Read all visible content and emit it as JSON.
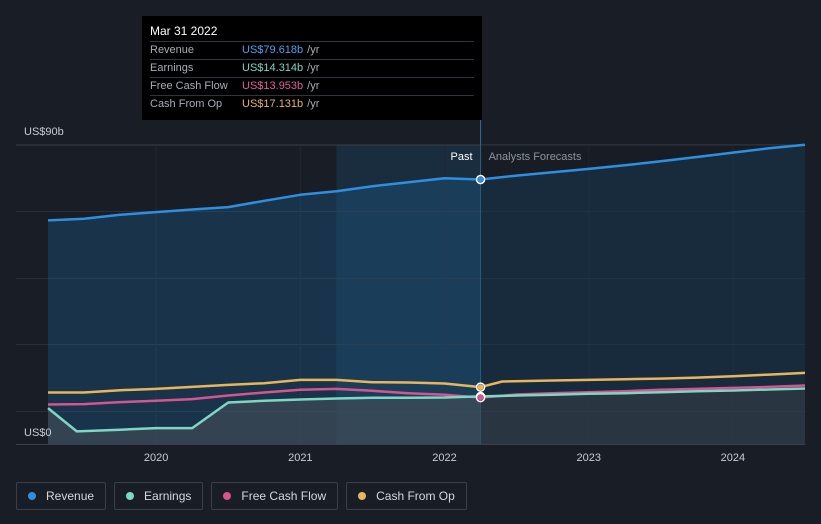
{
  "chart_data": {
    "type": "line",
    "x_range": [
      2019.25,
      2024.5
    ],
    "ylim": [
      0,
      90
    ],
    "y_tick_labels": [
      {
        "value": 90,
        "label": "US$90b"
      },
      {
        "value": 0,
        "label": "US$0"
      }
    ],
    "x_ticks": [
      {
        "value": 2020,
        "label": "2020"
      },
      {
        "value": 2021,
        "label": "2021"
      },
      {
        "value": 2022,
        "label": "2022"
      },
      {
        "value": 2023,
        "label": "2023"
      },
      {
        "value": 2024,
        "label": "2024"
      }
    ],
    "divider_x": 2022.25,
    "highlight_start_x": 2021.25,
    "past_label": "Past",
    "forecast_label": "Analysts Forecasts",
    "series": [
      {
        "name": "Revenue",
        "color": "#2e8fe0",
        "area": true,
        "points": [
          [
            2019.25,
            67.3
          ],
          [
            2019.5,
            67.8
          ],
          [
            2019.75,
            69.0
          ],
          [
            2020,
            69.8
          ],
          [
            2020.25,
            70.6
          ],
          [
            2020.5,
            71.3
          ],
          [
            2020.75,
            73.2
          ],
          [
            2021,
            75.0
          ],
          [
            2021.25,
            76.1
          ],
          [
            2021.5,
            77.6
          ],
          [
            2021.75,
            78.8
          ],
          [
            2022,
            80.0
          ],
          [
            2022.25,
            79.618
          ],
          [
            2022.5,
            80.8
          ],
          [
            2022.75,
            81.8
          ],
          [
            2023,
            82.8
          ],
          [
            2023.25,
            83.9
          ],
          [
            2023.5,
            85.1
          ],
          [
            2023.75,
            86.4
          ],
          [
            2024,
            87.7
          ],
          [
            2024.25,
            89.0
          ],
          [
            2024.5,
            90.1
          ]
        ]
      },
      {
        "name": "Earnings",
        "color": "#7fd6c2",
        "area": true,
        "points": [
          [
            2019.25,
            10.8
          ],
          [
            2019.45,
            3.8
          ],
          [
            2019.75,
            4.3
          ],
          [
            2020,
            4.8
          ],
          [
            2020.25,
            4.8
          ],
          [
            2020.5,
            12.5
          ],
          [
            2020.75,
            13.0
          ],
          [
            2021,
            13.4
          ],
          [
            2021.25,
            13.7
          ],
          [
            2021.5,
            13.9
          ],
          [
            2021.75,
            13.9
          ],
          [
            2022,
            14.0
          ],
          [
            2022.25,
            14.314
          ],
          [
            2022.5,
            14.6
          ],
          [
            2022.75,
            14.8
          ],
          [
            2023,
            15.1
          ],
          [
            2023.25,
            15.3
          ],
          [
            2023.5,
            15.6
          ],
          [
            2023.75,
            15.9
          ],
          [
            2024,
            16.1
          ],
          [
            2024.25,
            16.4
          ],
          [
            2024.5,
            16.7
          ]
        ]
      },
      {
        "name": "Free Cash Flow",
        "color": "#d6558f",
        "area": false,
        "points": [
          [
            2019.25,
            11.9
          ],
          [
            2019.5,
            12.0
          ],
          [
            2019.75,
            12.6
          ],
          [
            2020,
            13.0
          ],
          [
            2020.25,
            13.5
          ],
          [
            2020.5,
            14.6
          ],
          [
            2020.75,
            15.5
          ],
          [
            2021,
            16.3
          ],
          [
            2021.25,
            16.6
          ],
          [
            2021.5,
            16.0
          ],
          [
            2021.75,
            15.3
          ],
          [
            2022,
            14.8
          ],
          [
            2022.25,
            13.953
          ],
          [
            2022.5,
            14.9
          ],
          [
            2022.75,
            15.3
          ],
          [
            2023,
            15.6
          ],
          [
            2023.25,
            15.9
          ],
          [
            2023.5,
            16.3
          ],
          [
            2023.75,
            16.6
          ],
          [
            2024,
            16.9
          ],
          [
            2024.25,
            17.2
          ],
          [
            2024.5,
            17.6
          ]
        ]
      },
      {
        "name": "Cash From Op",
        "color": "#e9b55c",
        "area": false,
        "points": [
          [
            2019.25,
            15.5
          ],
          [
            2019.5,
            15.5
          ],
          [
            2019.75,
            16.2
          ],
          [
            2020,
            16.6
          ],
          [
            2020.25,
            17.2
          ],
          [
            2020.5,
            17.8
          ],
          [
            2020.75,
            18.3
          ],
          [
            2021,
            19.3
          ],
          [
            2021.25,
            19.3
          ],
          [
            2021.5,
            18.6
          ],
          [
            2021.75,
            18.5
          ],
          [
            2022,
            18.2
          ],
          [
            2022.25,
            17.131
          ],
          [
            2022.4,
            18.8
          ],
          [
            2022.75,
            19.1
          ],
          [
            2023,
            19.3
          ],
          [
            2023.25,
            19.5
          ],
          [
            2023.5,
            19.7
          ],
          [
            2023.75,
            20.0
          ],
          [
            2024,
            20.4
          ],
          [
            2024.25,
            20.9
          ],
          [
            2024.5,
            21.4
          ]
        ]
      }
    ]
  },
  "tooltip": {
    "date": "Mar 31 2022",
    "unit": "/yr",
    "rows": [
      {
        "label": "Revenue",
        "value": "US$79.618b",
        "color": "#4aa3f0"
      },
      {
        "label": "Earnings",
        "value": "US$14.314b",
        "color": "#7fd6c2"
      },
      {
        "label": "Free Cash Flow",
        "value": "US$13.953b",
        "color": "#e0609c"
      },
      {
        "label": "Cash From Op",
        "value": "US$17.131b",
        "color": "#e9b55c"
      }
    ]
  },
  "legend": [
    {
      "label": "Revenue",
      "color": "#2e8fe0"
    },
    {
      "label": "Earnings",
      "color": "#7fd6c2"
    },
    {
      "label": "Free Cash Flow",
      "color": "#d6558f"
    },
    {
      "label": "Cash From Op",
      "color": "#e9b55c"
    }
  ]
}
